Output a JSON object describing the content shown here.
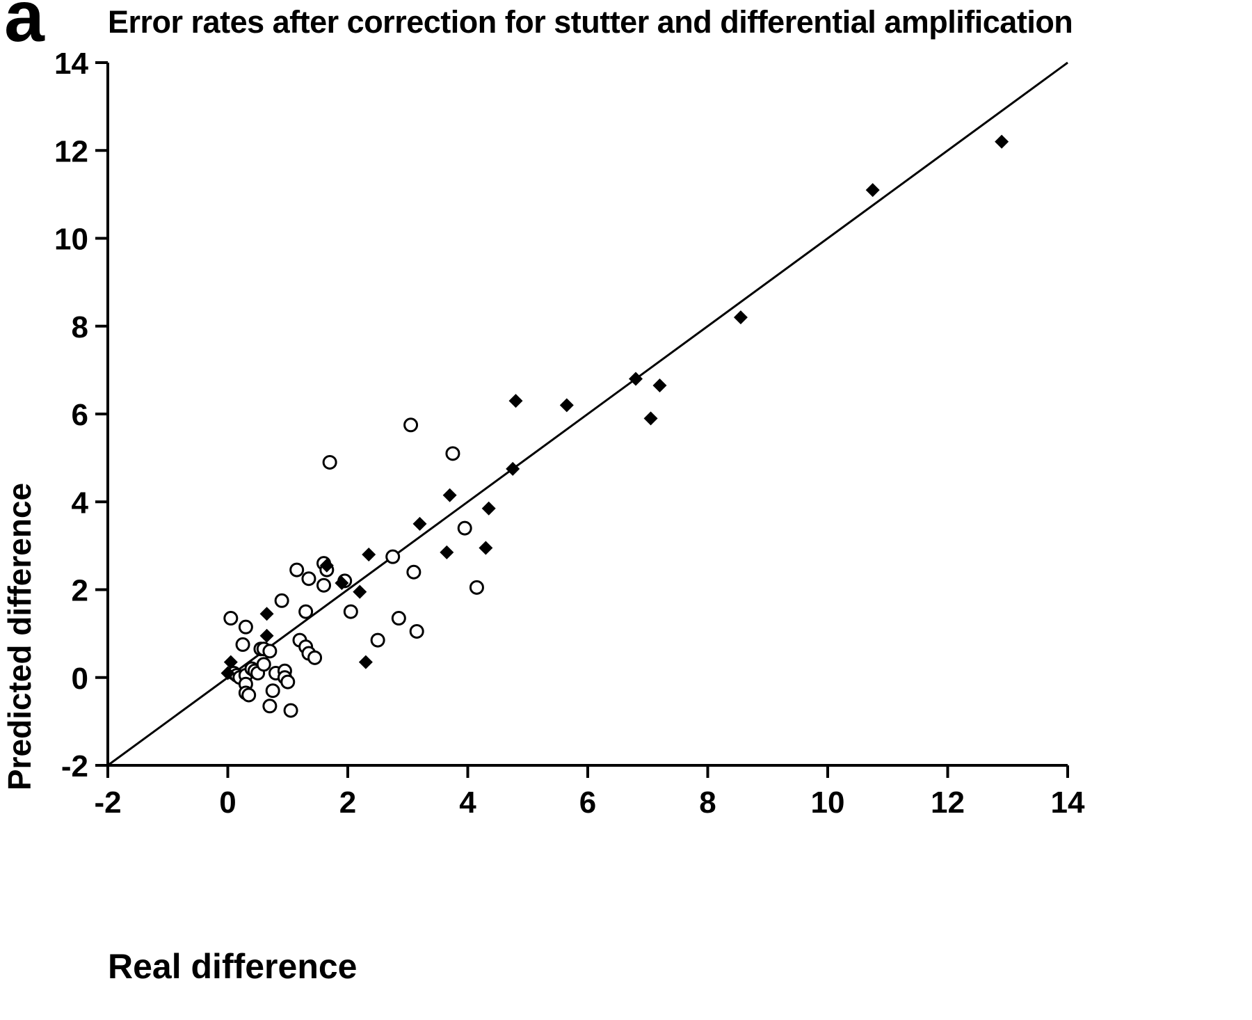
{
  "panel_label": "a",
  "colors": {
    "foreground": "#000000",
    "background": "#ffffff"
  },
  "chart_data": {
    "type": "scatter",
    "title": "Error rates after correction for stutter and differential amplification",
    "xlabel": "Real difference",
    "ylabel": "Predicted difference",
    "xlim": [
      -2,
      14
    ],
    "ylim": [
      -2,
      14
    ],
    "xticks": [
      -2,
      0,
      2,
      4,
      6,
      8,
      10,
      12,
      14
    ],
    "yticks": [
      -2,
      0,
      2,
      4,
      6,
      8,
      10,
      12,
      14
    ],
    "grid": false,
    "legend": "none",
    "identity_line": {
      "from": [
        -2,
        -2
      ],
      "to": [
        14,
        14
      ]
    },
    "series": [
      {
        "name": "open-circles",
        "marker": "circle",
        "points": [
          [
            0.05,
            1.35
          ],
          [
            0.3,
            1.15
          ],
          [
            0.25,
            0.75
          ],
          [
            0.1,
            0.1
          ],
          [
            0.15,
            0.05
          ],
          [
            0.2,
            0.0
          ],
          [
            0.3,
            0.05
          ],
          [
            0.3,
            -0.15
          ],
          [
            0.3,
            -0.35
          ],
          [
            0.35,
            -0.4
          ],
          [
            0.4,
            0.2
          ],
          [
            0.45,
            0.15
          ],
          [
            0.5,
            0.1
          ],
          [
            0.55,
            0.65
          ],
          [
            0.6,
            0.65
          ],
          [
            0.7,
            0.6
          ],
          [
            0.6,
            0.3
          ],
          [
            0.8,
            0.1
          ],
          [
            0.75,
            -0.3
          ],
          [
            0.7,
            -0.65
          ],
          [
            0.9,
            1.75
          ],
          [
            0.95,
            0.15
          ],
          [
            0.95,
            0.0
          ],
          [
            1.0,
            -0.1
          ],
          [
            1.05,
            -0.75
          ],
          [
            1.15,
            2.45
          ],
          [
            1.3,
            1.5
          ],
          [
            1.35,
            2.25
          ],
          [
            1.2,
            0.85
          ],
          [
            1.3,
            0.7
          ],
          [
            1.35,
            0.55
          ],
          [
            1.45,
            0.45
          ],
          [
            1.6,
            2.6
          ],
          [
            1.65,
            2.45
          ],
          [
            1.6,
            2.1
          ],
          [
            1.7,
            4.9
          ],
          [
            1.95,
            2.2
          ],
          [
            2.05,
            1.5
          ],
          [
            2.5,
            0.85
          ],
          [
            2.75,
            2.75
          ],
          [
            2.85,
            1.35
          ],
          [
            3.05,
            5.75
          ],
          [
            3.1,
            2.4
          ],
          [
            3.15,
            1.05
          ],
          [
            3.75,
            5.1
          ],
          [
            3.95,
            3.4
          ],
          [
            4.15,
            2.05
          ]
        ]
      },
      {
        "name": "filled-diamonds",
        "marker": "diamond",
        "points": [
          [
            0.0,
            0.1
          ],
          [
            0.05,
            0.35
          ],
          [
            0.65,
            1.45
          ],
          [
            0.65,
            0.95
          ],
          [
            1.65,
            2.55
          ],
          [
            1.9,
            2.15
          ],
          [
            2.2,
            1.95
          ],
          [
            2.35,
            2.8
          ],
          [
            2.3,
            0.35
          ],
          [
            3.2,
            3.5
          ],
          [
            3.65,
            2.85
          ],
          [
            3.7,
            4.15
          ],
          [
            4.3,
            2.95
          ],
          [
            4.35,
            3.85
          ],
          [
            4.75,
            4.75
          ],
          [
            4.8,
            6.3
          ],
          [
            5.65,
            6.2
          ],
          [
            6.8,
            6.8
          ],
          [
            7.05,
            5.9
          ],
          [
            7.2,
            6.65
          ],
          [
            8.55,
            8.2
          ],
          [
            10.75,
            11.1
          ],
          [
            12.9,
            12.2
          ]
        ]
      }
    ]
  }
}
